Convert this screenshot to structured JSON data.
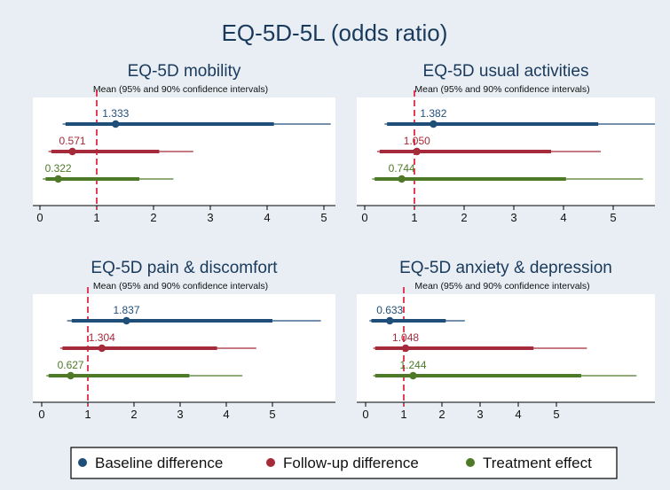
{
  "title": "EQ-5D-5L (odds ratio)",
  "colors": {
    "background": "#e8eef4",
    "plot_background": "#ffffff",
    "baseline": "#1f4e79",
    "followup": "#a52a3a",
    "treatment": "#4e7a28",
    "reference_line": "#e0102a"
  },
  "legend": {
    "items": [
      {
        "label": "Baseline difference",
        "color": "#1f4e79"
      },
      {
        "label": "Follow-up difference",
        "color": "#a52a3a"
      },
      {
        "label": "Treatment effect",
        "color": "#4e7a28"
      }
    ]
  },
  "chart_data": [
    {
      "type": "forest",
      "title": "EQ-5D mobility",
      "subtitle": "Mean (95% and 90% confidence intervals)",
      "xlim": [
        0,
        5
      ],
      "xticks": [
        0,
        1,
        2,
        3,
        4,
        5
      ],
      "reference_x": 1,
      "series": [
        {
          "name": "Baseline difference",
          "mean": 1.333,
          "label": "1.333",
          "ci90": [
            0.45,
            4.12
          ],
          "ci95": [
            0.4,
            5.12
          ]
        },
        {
          "name": "Follow-up difference",
          "mean": 0.571,
          "label": "0.571",
          "ci90": [
            0.2,
            2.1
          ],
          "ci95": [
            0.15,
            2.7
          ]
        },
        {
          "name": "Treatment effect",
          "mean": 0.322,
          "label": "0.322",
          "ci90": [
            0.1,
            1.75
          ],
          "ci95": [
            0.05,
            2.35
          ]
        }
      ]
    },
    {
      "type": "forest",
      "title": "EQ-5D usual activities",
      "subtitle": "Mean (95% and 90% confidence intervals)",
      "xlim": [
        0,
        5
      ],
      "xticks": [
        0,
        1,
        2,
        3,
        4,
        5
      ],
      "reference_x": 1,
      "series": [
        {
          "name": "Baseline difference",
          "mean": 1.382,
          "label": "1.382",
          "ci90": [
            0.45,
            4.7
          ],
          "ci95": [
            0.4,
            5.85
          ]
        },
        {
          "name": "Follow-up difference",
          "mean": 1.05,
          "label": "1.050",
          "ci90": [
            0.3,
            3.75
          ],
          "ci95": [
            0.25,
            4.75
          ]
        },
        {
          "name": "Treatment effect",
          "mean": 0.744,
          "label": "0.744",
          "ci90": [
            0.2,
            4.05
          ],
          "ci95": [
            0.15,
            5.6
          ]
        }
      ]
    },
    {
      "type": "forest",
      "title": "EQ-5D pain & discomfort",
      "subtitle": "Mean (95% and 90% confidence intervals)",
      "xlim": [
        0,
        5
      ],
      "xticks": [
        0,
        1,
        2,
        3,
        4,
        5
      ],
      "reference_x": 1,
      "series": [
        {
          "name": "Baseline difference",
          "mean": 1.837,
          "label": "1.837",
          "ci90": [
            0.65,
            5.0
          ],
          "ci95": [
            0.55,
            6.05
          ]
        },
        {
          "name": "Follow-up difference",
          "mean": 1.304,
          "label": "1.304",
          "ci90": [
            0.45,
            3.8
          ],
          "ci95": [
            0.4,
            4.65
          ]
        },
        {
          "name": "Treatment effect",
          "mean": 0.627,
          "label": "0.627",
          "ci90": [
            0.15,
            3.2
          ],
          "ci95": [
            0.1,
            4.35
          ]
        }
      ]
    },
    {
      "type": "forest",
      "title": "EQ-5D anxiety & depression",
      "subtitle": "Mean (95% and 90% confidence intervals)",
      "xlim": [
        0,
        5
      ],
      "xticks": [
        0,
        1,
        2,
        3,
        4,
        5
      ],
      "reference_x": 1,
      "series": [
        {
          "name": "Baseline difference",
          "mean": 0.633,
          "label": "0.633",
          "ci90": [
            0.15,
            2.1
          ],
          "ci95": [
            0.1,
            2.6
          ]
        },
        {
          "name": "Follow-up difference",
          "mean": 1.048,
          "label": "1.048",
          "ci90": [
            0.25,
            4.4
          ],
          "ci95": [
            0.2,
            5.8
          ]
        },
        {
          "name": "Treatment effect",
          "mean": 1.244,
          "label": "1.244",
          "ci90": [
            0.25,
            5.65
          ],
          "ci95": [
            0.2,
            7.1
          ]
        }
      ]
    }
  ]
}
